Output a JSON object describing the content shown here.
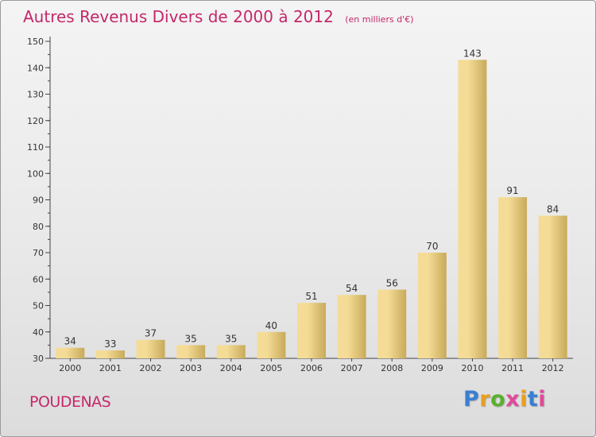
{
  "title": "Autres Revenus Divers de 2000 à 2012",
  "subtitle": "(en milliers d'€)",
  "commune": "POUDENAS",
  "logo": {
    "text": "Proxiti",
    "letter_colors": [
      "#3a7fd0",
      "#e8a020",
      "#5ab030",
      "#e04a9a",
      "#e8a020",
      "#3a7fd0",
      "#e04a9a"
    ]
  },
  "colors": {
    "title": "#c4286a",
    "bar_light": "#f5dc96",
    "bar_dark": "#c8aa5a",
    "axis": "#444444",
    "label": "#333333"
  },
  "chart_data": {
    "type": "bar",
    "categories": [
      "2000",
      "2001",
      "2002",
      "2003",
      "2004",
      "2005",
      "2006",
      "2007",
      "2008",
      "2009",
      "2010",
      "2011",
      "2012"
    ],
    "values": [
      34,
      33,
      37,
      35,
      35,
      40,
      51,
      54,
      56,
      70,
      143,
      91,
      84
    ],
    "ylim": [
      30,
      150
    ],
    "yticks": [
      30,
      40,
      50,
      60,
      70,
      80,
      90,
      100,
      110,
      120,
      130,
      140,
      150
    ],
    "minor_step": 5,
    "grid": false,
    "legend": "none"
  }
}
